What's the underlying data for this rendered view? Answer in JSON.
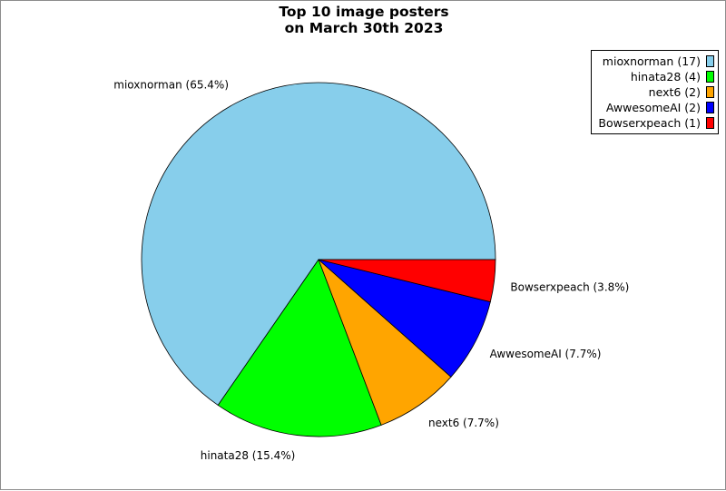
{
  "chart_data": {
    "type": "pie",
    "title_lines": [
      "Top 10 image posters",
      "on March 30th 2023"
    ],
    "slices": [
      {
        "label": "mioxnorman",
        "value": 17,
        "percent_label": "mioxnorman (65.4%)",
        "legend_label": "mioxnorman (17)",
        "color": "#87ceeb"
      },
      {
        "label": "hinata28",
        "value": 4,
        "percent_label": "hinata28 (15.4%)",
        "legend_label": "hinata28 (4)",
        "color": "#00ff00"
      },
      {
        "label": "next6",
        "value": 2,
        "percent_label": "next6 (7.7%)",
        "legend_label": "next6 (2)",
        "color": "#ffa500"
      },
      {
        "label": "AwwesomeAI",
        "value": 2,
        "percent_label": "AwwesomeAI (7.7%)",
        "legend_label": "AwwesomeAI (2)",
        "color": "#0000ff"
      },
      {
        "label": "Bowserxpeach",
        "value": 1,
        "percent_label": "Bowserxpeach (3.8%)",
        "legend_label": "Bowserxpeach (1)",
        "color": "#ff0000"
      }
    ],
    "start_angle_deg": 0,
    "direction": "counterclockwise",
    "legend_position": "top-right"
  }
}
